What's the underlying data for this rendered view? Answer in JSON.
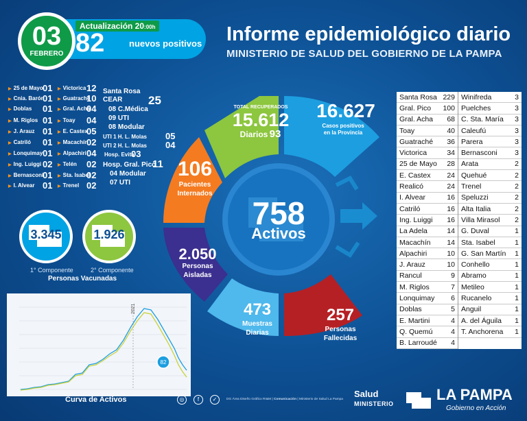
{
  "header": {
    "day": "03",
    "month": "FEBRERO",
    "update_label": "Actualización 20",
    "update_time": ":00h",
    "new_positive_count": "82",
    "new_positive_label": "nuevos positivos",
    "title": "Informe epidemiológico diario",
    "subtitle": "MINISTERIO DE SALUD DEL GOBIERNO DE LA PAMPA"
  },
  "localities_left": {
    "col1": [
      {
        "name": "25 de Mayo",
        "value": "01"
      },
      {
        "name": "Cnia. Barón",
        "value": "01"
      },
      {
        "name": "Doblas",
        "value": "01"
      },
      {
        "name": "M. Riglos",
        "value": "01"
      },
      {
        "name": "J. Arauz",
        "value": "01"
      },
      {
        "name": "Catriló",
        "value": "01"
      },
      {
        "name": "Lonquimay",
        "value": "01"
      },
      {
        "name": "Ing. Luiggi",
        "value": "02"
      },
      {
        "name": "Bernasconi",
        "value": "01"
      },
      {
        "name": "I. Alvear",
        "value": "01"
      }
    ],
    "col2": [
      {
        "name": "Victorica",
        "value": "12"
      },
      {
        "name": "Guatraché",
        "value": "10"
      },
      {
        "name": "Gral. Acha",
        "value": "04"
      },
      {
        "name": "Toay",
        "value": "04"
      },
      {
        "name": "E. Castex",
        "value": "05"
      },
      {
        "name": "Macachín",
        "value": "02"
      },
      {
        "name": "Alpachiri",
        "value": "04"
      },
      {
        "name": "Telén",
        "value": "02"
      },
      {
        "name": "Sta. Isabel",
        "value": "02"
      },
      {
        "name": "Trenel",
        "value": "02"
      }
    ],
    "santa_rosa": {
      "label": "Santa Rosa",
      "cear": "CEAR",
      "cear_total": "25",
      "cear_items": [
        "08 C.Médica",
        "09 UTI",
        "08 Modular"
      ],
      "uti1": "UTI 1 H. L. Molas",
      "uti1_val": "05",
      "uti2": "UTI 2 H. L. Molas",
      "uti2_val": "04",
      "evita": "Hosp. Evita",
      "evita_val": "03",
      "pico": "Hosp. Gral. Pico",
      "pico_val": "11",
      "pico_items": [
        "04 Modular",
        "07 UTI"
      ]
    }
  },
  "vaccines": {
    "first_value": "3.345",
    "first_label": "1° Componente",
    "second_value": "1.926",
    "second_label": "2° Componente",
    "caption": "Personas Vacunadas",
    "first_color": "#00a3e3",
    "second_color": "#8dc63f"
  },
  "wheel": {
    "recovered_label": "TOTAL RECUPERADOS",
    "recovered_value": "15.612",
    "recovered_daily_label": "Diarios",
    "recovered_daily": "93",
    "cases_value": "16.627",
    "cases_label1": "Casos positivos",
    "cases_label2": "en la Provincia",
    "hosp_value": "106",
    "hosp_label1": "Pacientes",
    "hosp_label2": "Internados",
    "active_value": "758",
    "active_label": "Activos",
    "isolated_value": "2.050",
    "isolated_label1": "Personas",
    "isolated_label2": "Aisladas",
    "samples_value": "473",
    "samples_label1": "Muestras",
    "samples_label2": "Diarias",
    "deaths_value": "257",
    "deaths_label1": "Personas",
    "deaths_label2": "Fallecidas",
    "colors": {
      "green": "#8dc63f",
      "blue": "#1d9ee0",
      "orange": "#f47b20",
      "purple": "#3b2f8f",
      "light": "#4fb8ec",
      "red": "#b52025"
    }
  },
  "chart": {
    "title": "Curva de Activos",
    "year_marker": "2021",
    "current_marker": "82"
  },
  "table": {
    "col1": [
      [
        "Santa Rosa",
        "229"
      ],
      [
        "Gral. Pico",
        "100"
      ],
      [
        "Gral. Acha",
        "68"
      ],
      [
        "Toay",
        "40"
      ],
      [
        "Guatraché",
        "36"
      ],
      [
        "Victorica",
        "34"
      ],
      [
        "25 de Mayo",
        "28"
      ],
      [
        "E. Castex",
        "24"
      ],
      [
        "Realicó",
        "24"
      ],
      [
        "I. Alvear",
        "16"
      ],
      [
        "Catriló",
        "16"
      ],
      [
        "Ing. Luiggi",
        "16"
      ],
      [
        "La Adela",
        "14"
      ],
      [
        "Macachín",
        "14"
      ],
      [
        "Alpachiri",
        "10"
      ],
      [
        "J. Arauz",
        "10"
      ],
      [
        "Rancul",
        "9"
      ],
      [
        "M. Riglos",
        "7"
      ],
      [
        "Lonquimay",
        "6"
      ],
      [
        "Doblas",
        "5"
      ],
      [
        "E. Martini",
        "4"
      ],
      [
        "Q. Quemú",
        "4"
      ],
      [
        "B. Larroudé",
        "4"
      ]
    ],
    "col2": [
      [
        "Winifreda",
        "3"
      ],
      [
        "Puelches",
        "3"
      ],
      [
        "C. Sta. María",
        "3"
      ],
      [
        "Caleufú",
        "3"
      ],
      [
        "Parera",
        "3"
      ],
      [
        "Bernasconi",
        "3"
      ],
      [
        "Arata",
        "2"
      ],
      [
        "Quehué",
        "2"
      ],
      [
        "Trenel",
        "2"
      ],
      [
        "Speluzzi",
        "2"
      ],
      [
        "Alta Italia",
        "2"
      ],
      [
        "Villa Mirasol",
        "2"
      ],
      [
        "G. Duval",
        "1"
      ],
      [
        "Sta. Isabel",
        "1"
      ],
      [
        "G. San Martín",
        "1"
      ],
      [
        "Conhello",
        "1"
      ],
      [
        "Abramo",
        "1"
      ],
      [
        "Metileo",
        "1"
      ],
      [
        "Rucanelo",
        "1"
      ],
      [
        "Anguil",
        "1"
      ],
      [
        "A. del Águila",
        "1"
      ],
      [
        "T. Anchorena",
        "1"
      ]
    ]
  },
  "footer": {
    "credits_1": "DG Área Diseño Gráfico RI&M |",
    "credits_2": "Comunicación",
    "credits_3": "| Ministerio de Salud La Pampa",
    "salud": "Salud",
    "ministerio": "MINISTERIO",
    "la_pampa": "LA PAMPA",
    "gobierno": "Gobierno en Acción"
  }
}
